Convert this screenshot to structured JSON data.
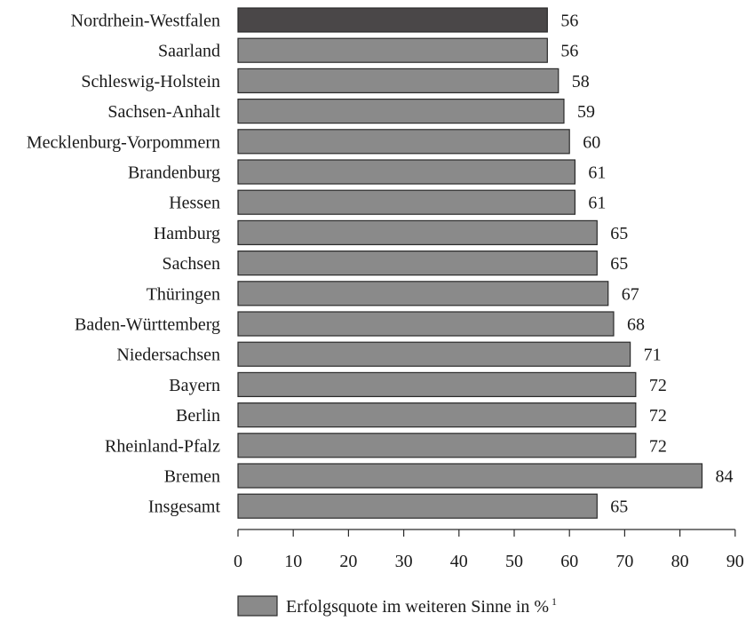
{
  "chart_data": {
    "type": "bar",
    "orientation": "horizontal",
    "categories": [
      "Nordrhein-Westfalen",
      "Saarland",
      "Schleswig-Holstein",
      "Sachsen-Anhalt",
      "Mecklenburg-Vorpommern",
      "Brandenburg",
      "Hessen",
      "Hamburg",
      "Sachsen",
      "Thüringen",
      "Baden-Württemberg",
      "Niedersachsen",
      "Bayern",
      "Berlin",
      "Rheinland-Pfalz",
      "Bremen",
      "Insgesamt"
    ],
    "series": [
      {
        "name": "Erfolgsquote im weiteren Sinne in %",
        "values": [
          56,
          56,
          58,
          59,
          60,
          61,
          61,
          65,
          65,
          67,
          68,
          71,
          72,
          72,
          72,
          84,
          65
        ]
      }
    ],
    "highlight_index": 0,
    "xlim": [
      0,
      90
    ],
    "x_ticks": [
      "0",
      "10",
      "20",
      "30",
      "40",
      "50",
      "60",
      "70",
      "80",
      "90"
    ],
    "legend": {
      "label": "Erfolgsquote im weiteren Sinne in %",
      "superscript": "1",
      "placement": "bottom"
    },
    "colors": {
      "bar": "#8a8a8a",
      "highlight": "#4a4748",
      "outline": "#2a2a2a",
      "text": "#1a1a1a"
    },
    "grid": false
  }
}
